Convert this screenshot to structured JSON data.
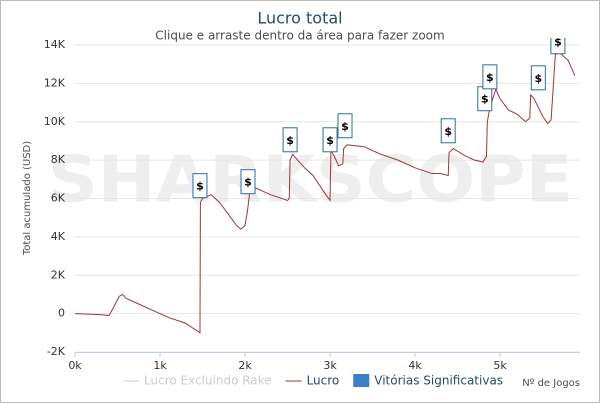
{
  "chart_data": {
    "type": "line",
    "title": "Lucro total",
    "subtitle": "Clique e arraste dentro da área para fazer zoom",
    "y_label": "Total acumulado (USD)",
    "x_label": "Nº de Jogos",
    "watermark": "SHARKSCOPE",
    "xlim": [
      0,
      5940
    ],
    "ylim": [
      -2000,
      14000
    ],
    "xticks": [
      {
        "value": 0,
        "label": "0k"
      },
      {
        "value": 1000,
        "label": "1k"
      },
      {
        "value": 2000,
        "label": "2k"
      },
      {
        "value": 3000,
        "label": "3k"
      },
      {
        "value": 4000,
        "label": "4k"
      },
      {
        "value": 5000,
        "label": "5k"
      }
    ],
    "yticks": [
      {
        "value": -2000,
        "label": "-2K"
      },
      0,
      {
        "value": 2000,
        "label": "2K"
      },
      {
        "value": 4000,
        "label": "4K"
      },
      {
        "value": 6000,
        "label": "6K"
      },
      {
        "value": 8000,
        "label": "8K"
      },
      {
        "value": 10000,
        "label": "10K"
      },
      {
        "value": 12000,
        "label": "12K"
      },
      {
        "value": 14000,
        "label": "14K"
      }
    ],
    "grid": true,
    "legend": [
      {
        "name": "Lucro Excluindo Rake",
        "color": "#cccccc",
        "symbol": "line"
      },
      {
        "name": "Lucro",
        "color": "#a3343b",
        "symbol": "line"
      },
      {
        "name": "Vitórias Significativas",
        "color": "#3a7ec9",
        "symbol": "square"
      }
    ],
    "series": [
      {
        "name": "Lucro",
        "color": "#a3343b",
        "x": [
          0,
          300,
          400,
          450,
          520,
          560,
          600,
          700,
          900,
          1100,
          1300,
          1470,
          1475,
          1500,
          1600,
          1700,
          1800,
          1900,
          1950,
          2000,
          2030,
          2060,
          2100,
          2300,
          2500,
          2520,
          2530,
          2560,
          2700,
          2800,
          2950,
          3000,
          3010,
          3050,
          3100,
          3150,
          3160,
          3200,
          3400,
          3600,
          3800,
          4000,
          4200,
          4300,
          4390,
          4400,
          4450,
          4600,
          4700,
          4800,
          4840,
          4850,
          4870,
          4900,
          4950,
          5000,
          5100,
          5200,
          5300,
          5350,
          5360,
          5400,
          5500,
          5560,
          5600,
          5650,
          5700,
          5800,
          5880
        ],
        "values": [
          0,
          -50,
          -100,
          300,
          900,
          1000,
          800,
          600,
          200,
          -200,
          -500,
          -1000,
          5800,
          6000,
          6200,
          5800,
          5200,
          4600,
          4400,
          4600,
          5400,
          6500,
          6600,
          6200,
          5900,
          6000,
          8000,
          8300,
          7600,
          7200,
          6200,
          5900,
          8500,
          8200,
          7700,
          7800,
          8600,
          8800,
          8700,
          8300,
          8000,
          7600,
          7300,
          7300,
          7200,
          8400,
          8600,
          8200,
          8000,
          7900,
          8200,
          10000,
          10500,
          11000,
          11700,
          11200,
          10600,
          10400,
          10000,
          10200,
          11400,
          11200,
          10300,
          9900,
          10100,
          13500,
          13600,
          13200,
          12400
        ]
      }
    ],
    "flags": {
      "name": "Vitórias Significativas",
      "label": "$",
      "color": "#2b6ca3",
      "x": [
        1470,
        2035,
        2530,
        3000,
        3176,
        4390,
        4820,
        4880,
        5450,
        5680
      ],
      "values": [
        6670,
        6875,
        9060,
        9060,
        9790,
        9530,
        11200,
        12340,
        12290,
        14170
      ]
    }
  }
}
